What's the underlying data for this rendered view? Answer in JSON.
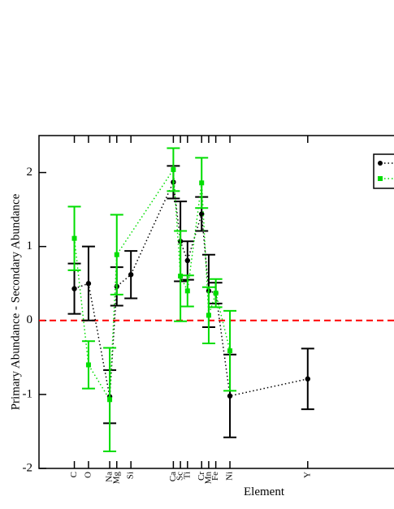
{
  "chart_data": {
    "type": "errorbar",
    "ylabel": "Primary Abundance - Secondary Abundance",
    "xlabel": "Element",
    "xlim": [
      1,
      51.2
    ],
    "ylim": [
      -2,
      2.5
    ],
    "yticks": [
      -2,
      -1,
      0,
      1,
      2
    ],
    "xticks": [
      {
        "value": 6,
        "label": "C"
      },
      {
        "value": 8,
        "label": "O"
      },
      {
        "value": 11,
        "label": "Na"
      },
      {
        "value": 12,
        "label": "Mg"
      },
      {
        "value": 14,
        "label": "Si"
      },
      {
        "value": 20,
        "label": "Ca"
      },
      {
        "value": 21,
        "label": "Sc"
      },
      {
        "value": 22,
        "label": "Ti"
      },
      {
        "value": 24,
        "label": "Cr"
      },
      {
        "value": 25,
        "label": "Mn"
      },
      {
        "value": 26,
        "label": "Fe"
      },
      {
        "value": 28,
        "label": "Ni"
      },
      {
        "value": 39,
        "label": "Y"
      }
    ],
    "reference_line": {
      "value": 0,
      "color": "#ff0000"
    },
    "series": [
      {
        "color": "#000000",
        "x": [
          6,
          8,
          11,
          12,
          14,
          20,
          21,
          22,
          24,
          25,
          26,
          28,
          39
        ],
        "values": [
          0.43,
          0.5,
          -1.03,
          0.46,
          0.62,
          1.87,
          1.07,
          0.81,
          1.44,
          0.4,
          0.37,
          -1.02,
          -0.79
        ],
        "errors": [
          0.34,
          0.5,
          0.36,
          0.26,
          0.32,
          0.22,
          0.54,
          0.26,
          0.23,
          0.49,
          0.14,
          0.56,
          0.41
        ]
      },
      {
        "color": "#00dd00",
        "x": [
          6,
          8,
          11,
          12,
          20,
          21,
          22,
          24,
          25,
          26,
          28
        ],
        "values": [
          1.11,
          -0.6,
          -1.07,
          0.89,
          2.04,
          0.6,
          0.4,
          1.86,
          0.07,
          0.37,
          -0.41
        ],
        "errors": [
          0.43,
          0.32,
          0.7,
          0.54,
          0.29,
          0.61,
          0.21,
          0.34,
          0.38,
          0.19,
          0.54
        ]
      }
    ]
  }
}
